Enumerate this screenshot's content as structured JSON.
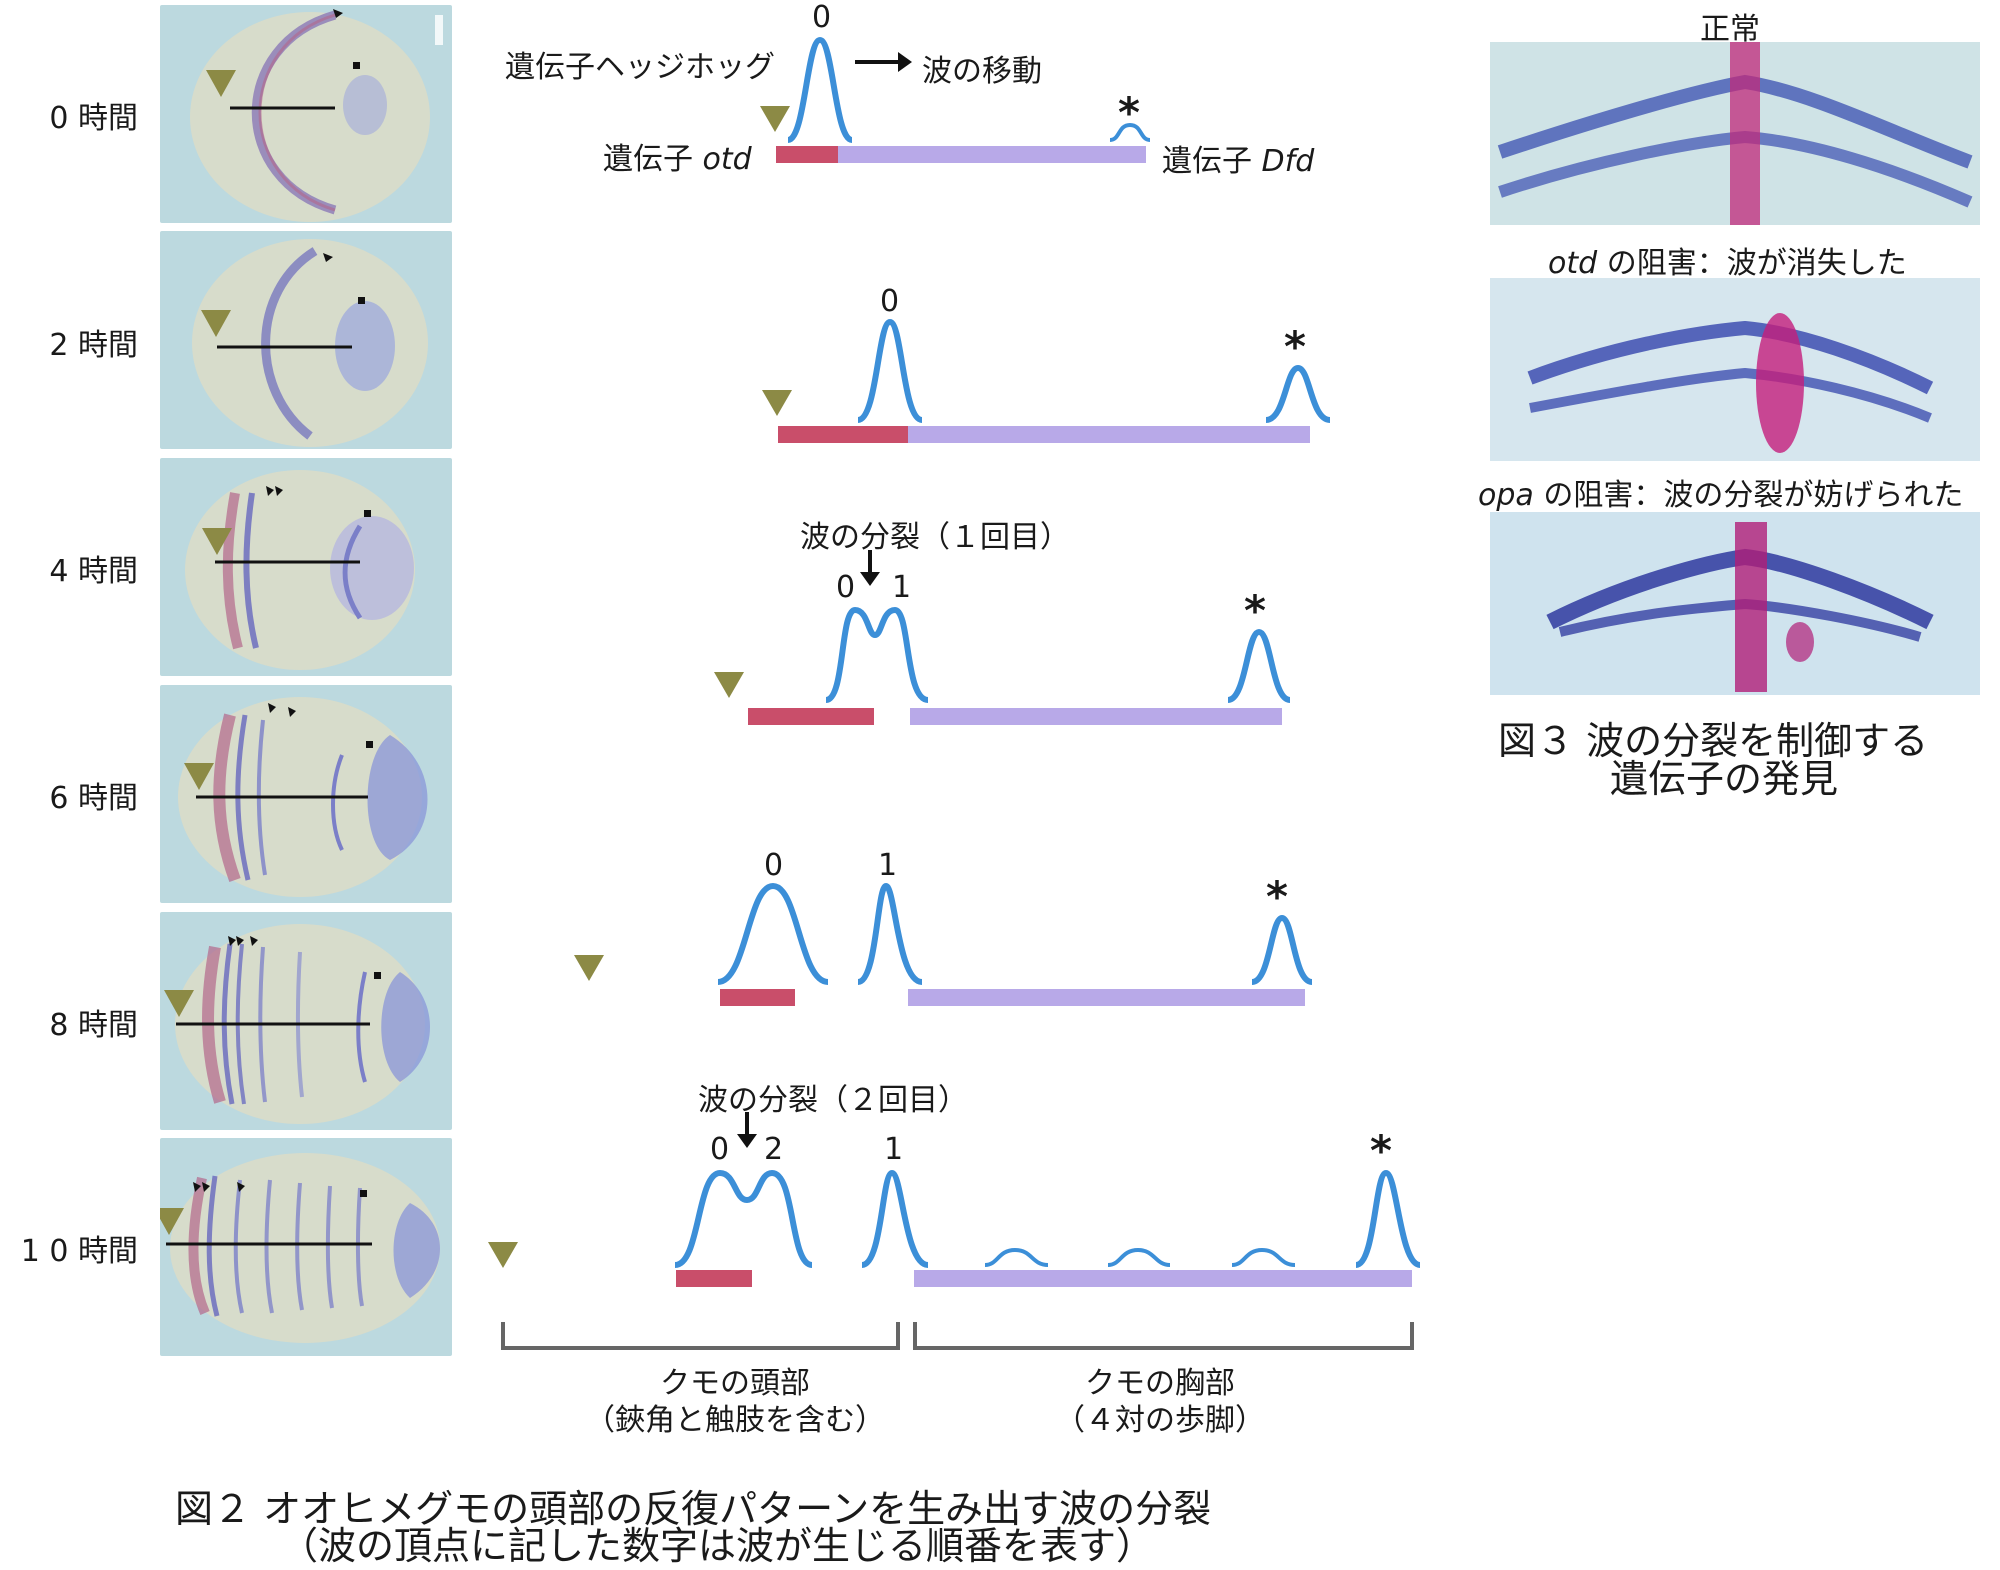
{
  "colors": {
    "head_bar": "#c94e6a",
    "trunk_bar": "#b8a9e8",
    "wave": "#3c8fd8",
    "marker": "#8c8a45",
    "embryo_bg": "#bcd9df"
  },
  "timepoints": [
    {
      "label": "0 時間"
    },
    {
      "label": "2 時間"
    },
    {
      "label": "4 時間"
    },
    {
      "label": "6 時間"
    },
    {
      "label": "8 時間"
    },
    {
      "label": "1 0 時間"
    }
  ],
  "annotations": {
    "hedgehog_label": "遺伝子ヘッジホッグ",
    "wave_move": "波の移動",
    "otd_prefix": "遺伝子 ",
    "otd_gene": "otd",
    "dfd_prefix": "遺伝子 ",
    "dfd_gene": "Dfd",
    "split1": "波の分裂（１回目）",
    "split2": "波の分裂（２回目）",
    "head_region": "クモの頭部",
    "head_sub": "（鋏角と触肢を含む）",
    "thorax_region": "クモの胸部",
    "thorax_sub": "（４対の歩脚）"
  },
  "wave_labels": {
    "r0": [
      "0"
    ],
    "r1": [
      "0"
    ],
    "r2": [
      "0",
      "1"
    ],
    "r3": [
      "0",
      "1"
    ],
    "r4": [
      "0",
      "2",
      "1"
    ],
    "star": "*"
  },
  "figure3": {
    "normal": "正常",
    "otd_gene": "otd",
    "otd_text": " の阻害：波が消失した",
    "opa_gene": "opa",
    "opa_text": " の阻害：波の分裂が妨げられた",
    "caption_line1": "図３ 波の分裂を制御する",
    "caption_line2": "遺伝子の発見"
  },
  "figure2": {
    "caption_line1": "図２ オオヒメグモの頭部の反復パターンを生み出す波の分裂",
    "caption_line2": "（波の頂点に記した数字は波が生じる順番を表す）"
  }
}
